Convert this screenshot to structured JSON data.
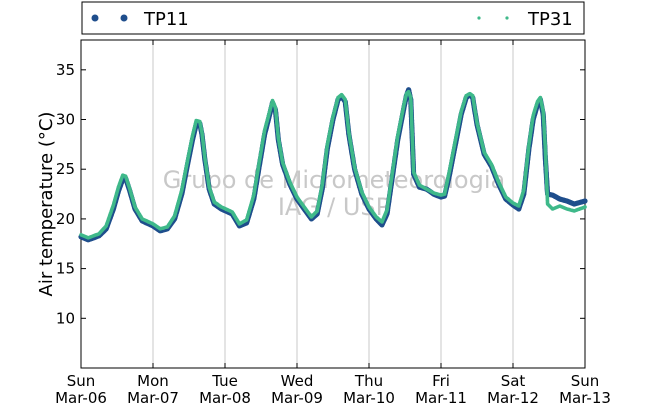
{
  "chart_data": {
    "type": "scatter",
    "title": "",
    "xlabel": "",
    "ylabel": "Air temperature (°C)",
    "ylim": [
      5,
      38
    ],
    "yticks": [
      10,
      15,
      20,
      25,
      30,
      35
    ],
    "xlim_days": [
      0,
      7
    ],
    "x_ticks": [
      {
        "day": "Sun",
        "date": "Mar-06"
      },
      {
        "day": "Mon",
        "date": "Mar-07"
      },
      {
        "day": "Tue",
        "date": "Mar-08"
      },
      {
        "day": "Wed",
        "date": "Mar-09"
      },
      {
        "day": "Thu",
        "date": "Mar-10"
      },
      {
        "day": "Fri",
        "date": "Mar-11"
      },
      {
        "day": "Sat",
        "date": "Mar-12"
      },
      {
        "day": "Sun",
        "date": "Mar-13"
      }
    ],
    "grid": "vertical",
    "legend_placement": "top",
    "watermark": [
      "Grupo de Micrometeorologia",
      "IAG / USP"
    ],
    "series": [
      {
        "name": "TP11",
        "color": "#1f4e8c",
        "marker": "hexagon",
        "points": [
          [
            0.0,
            18.2
          ],
          [
            0.1,
            17.9
          ],
          [
            0.25,
            18.3
          ],
          [
            0.35,
            19.0
          ],
          [
            0.45,
            21.0
          ],
          [
            0.52,
            22.8
          ],
          [
            0.58,
            24.0
          ],
          [
            0.62,
            24.1
          ],
          [
            0.67,
            23.0
          ],
          [
            0.75,
            21.0
          ],
          [
            0.85,
            19.8
          ],
          [
            1.0,
            19.3
          ],
          [
            1.1,
            18.8
          ],
          [
            1.2,
            19.0
          ],
          [
            1.3,
            20.0
          ],
          [
            1.4,
            22.5
          ],
          [
            1.48,
            25.5
          ],
          [
            1.55,
            28.0
          ],
          [
            1.6,
            29.5
          ],
          [
            1.65,
            29.6
          ],
          [
            1.68,
            28.5
          ],
          [
            1.72,
            26.0
          ],
          [
            1.78,
            23.0
          ],
          [
            1.85,
            21.5
          ],
          [
            1.95,
            21.0
          ],
          [
            2.1,
            20.5
          ],
          [
            2.2,
            19.3
          ],
          [
            2.3,
            19.6
          ],
          [
            2.4,
            22.0
          ],
          [
            2.48,
            25.5
          ],
          [
            2.55,
            28.5
          ],
          [
            2.62,
            30.5
          ],
          [
            2.66,
            31.7
          ],
          [
            2.7,
            31.0
          ],
          [
            2.74,
            28.0
          ],
          [
            2.8,
            25.5
          ],
          [
            2.9,
            23.5
          ],
          [
            3.0,
            22.0
          ],
          [
            3.1,
            21.0
          ],
          [
            3.2,
            20.0
          ],
          [
            3.28,
            20.5
          ],
          [
            3.35,
            23.0
          ],
          [
            3.42,
            27.0
          ],
          [
            3.5,
            30.0
          ],
          [
            3.57,
            32.0
          ],
          [
            3.62,
            32.3
          ],
          [
            3.67,
            31.8
          ],
          [
            3.72,
            28.5
          ],
          [
            3.8,
            25.0
          ],
          [
            3.9,
            22.5
          ],
          [
            4.0,
            21.0
          ],
          [
            4.1,
            20.0
          ],
          [
            4.18,
            19.4
          ],
          [
            4.25,
            20.5
          ],
          [
            4.32,
            24.0
          ],
          [
            4.4,
            28.0
          ],
          [
            4.48,
            31.0
          ],
          [
            4.52,
            32.4
          ],
          [
            4.55,
            33.0
          ],
          [
            4.58,
            32.0
          ],
          [
            4.62,
            24.5
          ],
          [
            4.7,
            23.2
          ],
          [
            4.8,
            23.0
          ],
          [
            4.9,
            22.5
          ],
          [
            5.0,
            22.2
          ],
          [
            5.05,
            22.3
          ],
          [
            5.12,
            24.5
          ],
          [
            5.2,
            27.5
          ],
          [
            5.28,
            30.5
          ],
          [
            5.35,
            32.2
          ],
          [
            5.4,
            32.5
          ],
          [
            5.44,
            32.2
          ],
          [
            5.5,
            29.5
          ],
          [
            5.6,
            26.5
          ],
          [
            5.7,
            25.3
          ],
          [
            5.8,
            23.5
          ],
          [
            5.9,
            22.0
          ],
          [
            6.0,
            21.4
          ],
          [
            6.08,
            21.0
          ],
          [
            6.15,
            22.5
          ],
          [
            6.22,
            27.0
          ],
          [
            6.28,
            30.0
          ],
          [
            6.34,
            31.5
          ],
          [
            6.38,
            32.0
          ],
          [
            6.42,
            30.5
          ],
          [
            6.45,
            26.0
          ],
          [
            6.48,
            22.5
          ],
          [
            6.55,
            22.4
          ],
          [
            6.65,
            22.0
          ],
          [
            6.75,
            21.8
          ],
          [
            6.85,
            21.5
          ],
          [
            7.0,
            21.8
          ]
        ]
      },
      {
        "name": "TP31",
        "color": "#3fb98a",
        "marker": "point",
        "points": [
          [
            0.0,
            18.4
          ],
          [
            0.1,
            18.1
          ],
          [
            0.25,
            18.5
          ],
          [
            0.35,
            19.3
          ],
          [
            0.45,
            21.4
          ],
          [
            0.52,
            23.2
          ],
          [
            0.58,
            24.4
          ],
          [
            0.62,
            24.3
          ],
          [
            0.67,
            23.2
          ],
          [
            0.75,
            21.2
          ],
          [
            0.85,
            20.0
          ],
          [
            1.0,
            19.5
          ],
          [
            1.1,
            19.0
          ],
          [
            1.2,
            19.2
          ],
          [
            1.3,
            20.3
          ],
          [
            1.4,
            22.9
          ],
          [
            1.48,
            25.9
          ],
          [
            1.55,
            28.4
          ],
          [
            1.6,
            29.9
          ],
          [
            1.65,
            29.8
          ],
          [
            1.68,
            28.7
          ],
          [
            1.72,
            26.2
          ],
          [
            1.78,
            23.2
          ],
          [
            1.85,
            21.7
          ],
          [
            1.95,
            21.2
          ],
          [
            2.1,
            20.7
          ],
          [
            2.2,
            19.5
          ],
          [
            2.3,
            19.9
          ],
          [
            2.4,
            22.4
          ],
          [
            2.48,
            25.9
          ],
          [
            2.55,
            28.9
          ],
          [
            2.62,
            30.8
          ],
          [
            2.66,
            31.9
          ],
          [
            2.7,
            31.2
          ],
          [
            2.74,
            28.2
          ],
          [
            2.8,
            25.7
          ],
          [
            2.9,
            23.7
          ],
          [
            3.0,
            22.2
          ],
          [
            3.1,
            21.2
          ],
          [
            3.2,
            20.2
          ],
          [
            3.28,
            20.8
          ],
          [
            3.35,
            23.4
          ],
          [
            3.42,
            27.4
          ],
          [
            3.5,
            30.3
          ],
          [
            3.57,
            32.2
          ],
          [
            3.62,
            32.5
          ],
          [
            3.67,
            32.0
          ],
          [
            3.72,
            28.7
          ],
          [
            3.8,
            25.2
          ],
          [
            3.9,
            22.7
          ],
          [
            4.0,
            21.2
          ],
          [
            4.1,
            20.2
          ],
          [
            4.18,
            19.7
          ],
          [
            4.25,
            20.9
          ],
          [
            4.32,
            24.4
          ],
          [
            4.4,
            28.4
          ],
          [
            4.48,
            31.3
          ],
          [
            4.52,
            32.6
          ],
          [
            4.55,
            32.8
          ],
          [
            4.58,
            32.2
          ],
          [
            4.62,
            24.7
          ],
          [
            4.7,
            23.4
          ],
          [
            4.8,
            23.0
          ],
          [
            4.9,
            22.6
          ],
          [
            5.0,
            22.4
          ],
          [
            5.05,
            22.5
          ],
          [
            5.12,
            24.9
          ],
          [
            5.2,
            27.9
          ],
          [
            5.28,
            30.8
          ],
          [
            5.35,
            32.4
          ],
          [
            5.4,
            32.6
          ],
          [
            5.44,
            32.4
          ],
          [
            5.5,
            29.7
          ],
          [
            5.6,
            26.7
          ],
          [
            5.7,
            25.5
          ],
          [
            5.8,
            23.7
          ],
          [
            5.9,
            22.2
          ],
          [
            6.0,
            21.6
          ],
          [
            6.08,
            21.3
          ],
          [
            6.15,
            22.9
          ],
          [
            6.22,
            27.4
          ],
          [
            6.28,
            30.4
          ],
          [
            6.34,
            31.8
          ],
          [
            6.38,
            32.2
          ],
          [
            6.42,
            30.8
          ],
          [
            6.45,
            27.0
          ],
          [
            6.48,
            21.5
          ],
          [
            6.55,
            21.0
          ],
          [
            6.65,
            21.3
          ],
          [
            6.75,
            21.0
          ],
          [
            6.85,
            20.8
          ],
          [
            7.0,
            21.2
          ]
        ]
      }
    ]
  }
}
